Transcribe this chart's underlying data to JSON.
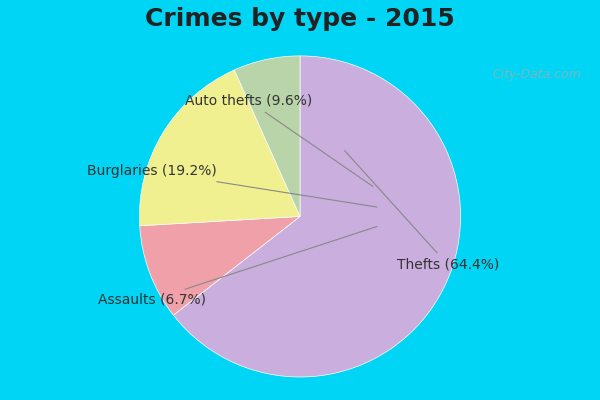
{
  "title": "Crimes by type - 2015",
  "slices": [
    {
      "label": "Thefts",
      "pct": 64.4,
      "color": "#c9aede"
    },
    {
      "label": "Auto thefts",
      "pct": 9.6,
      "color": "#f0a0a8"
    },
    {
      "label": "Burglaries",
      "pct": 19.2,
      "color": "#f0f090"
    },
    {
      "label": "Assaults",
      "pct": 6.7,
      "color": "#b8d4a8"
    }
  ],
  "bg_color_outer": "#00d5f5",
  "bg_color_inner": "#d8eed8",
  "title_fontsize": 18,
  "label_fontsize": 10,
  "watermark": "City-Data.com"
}
